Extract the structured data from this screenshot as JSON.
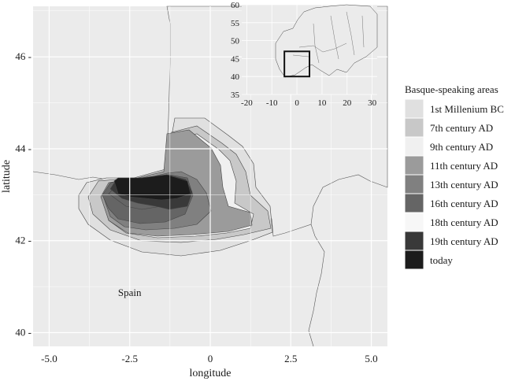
{
  "map": {
    "x_axis_label": "longitude",
    "y_axis_label": "latitude",
    "x_range": [
      -5.5,
      5.5
    ],
    "y_range": [
      39.7,
      47.1
    ],
    "x_ticks": [
      {
        "value": -5.0,
        "label": "-5.0"
      },
      {
        "value": -2.5,
        "label": "-2.5"
      },
      {
        "value": 0,
        "label": "0"
      },
      {
        "value": 2.5,
        "label": "2.5"
      },
      {
        "value": 5.0,
        "label": "5.0"
      }
    ],
    "y_ticks": [
      {
        "value": 40,
        "label": "40 -"
      },
      {
        "value": 42,
        "label": "42 -"
      },
      {
        "value": 44,
        "label": "44 -"
      },
      {
        "value": 46,
        "label": "46 -"
      }
    ],
    "place_labels": [
      {
        "name": "Spain",
        "lon": -2.5,
        "lat": 40.8
      }
    ],
    "background_color": "#ebebeb",
    "grid_color": "#ffffff"
  },
  "inset": {
    "x_range": [
      -22,
      32
    ],
    "y_range": [
      35,
      60
    ],
    "x_ticks": [
      {
        "value": -20,
        "label": "-20"
      },
      {
        "value": -10,
        "label": "-10"
      },
      {
        "value": 0,
        "label": "0"
      },
      {
        "value": 10,
        "label": "10"
      },
      {
        "value": 20,
        "label": "20"
      },
      {
        "value": 30,
        "label": "30"
      }
    ],
    "y_ticks": [
      {
        "value": 35,
        "label": "35"
      },
      {
        "value": 40,
        "label": "40"
      },
      {
        "value": 45,
        "label": "45"
      },
      {
        "value": 50,
        "label": "50"
      },
      {
        "value": 55,
        "label": "55"
      },
      {
        "value": 60,
        "label": "60"
      }
    ],
    "highlight_box": {
      "lon_min": -5,
      "lon_max": 5,
      "lat_min": 40,
      "lat_max": 47
    }
  },
  "legend": {
    "title": "Basque-speaking areas",
    "items": [
      {
        "label": "1st Millenium BC",
        "color": "#e0e0e0"
      },
      {
        "label": "7th century AD",
        "color": "#c8c8c8"
      },
      {
        "label": "9th century AD",
        "color": "#f0f0f0"
      },
      {
        "label": "11th century AD",
        "color": "#9b9b9b"
      },
      {
        "label": "13th century AD",
        "color": "#808080"
      },
      {
        "label": "16th century AD",
        "color": "#656565"
      },
      {
        "label": "18th century AD",
        "color": "#f7f7f7"
      },
      {
        "label": "19th century AD",
        "color": "#393939"
      },
      {
        "label": "today",
        "color": "#1c1c1c"
      }
    ]
  }
}
